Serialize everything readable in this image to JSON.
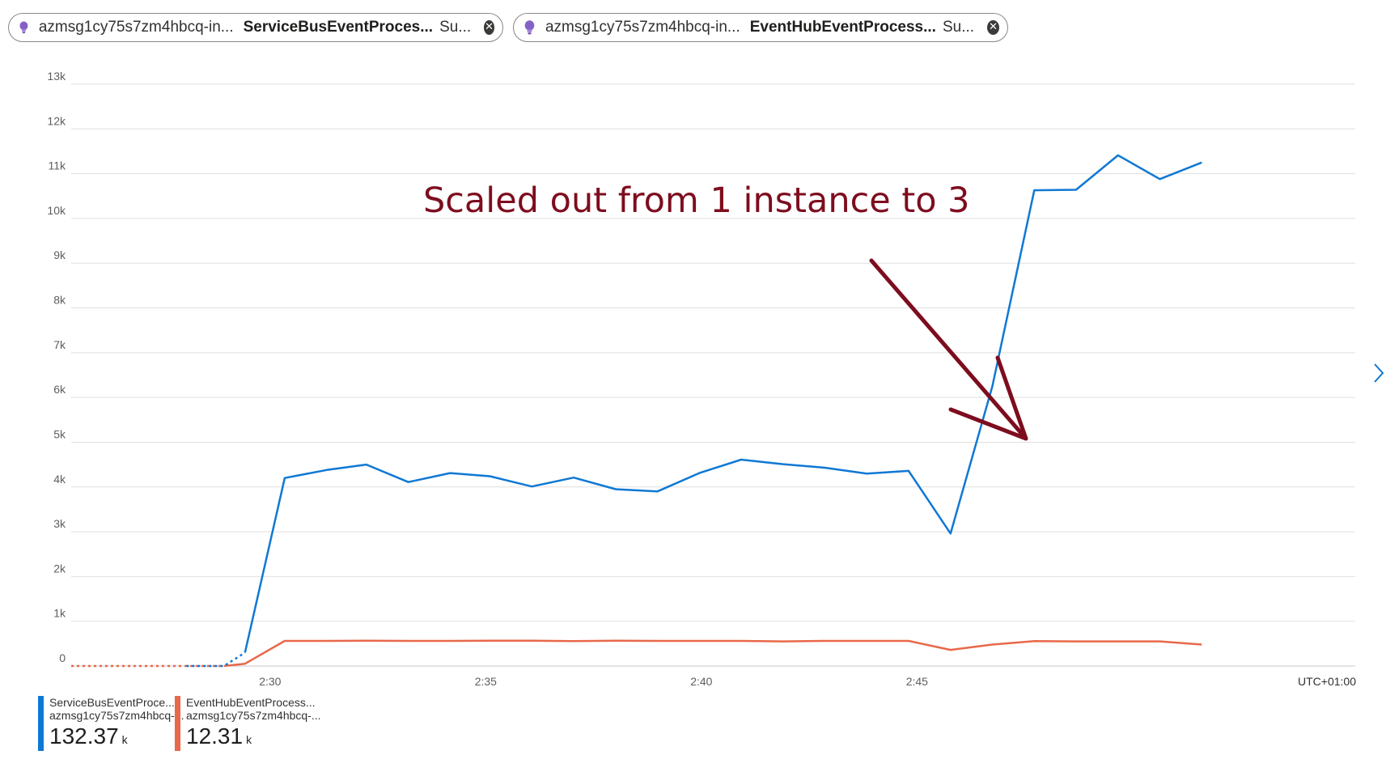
{
  "pills": [
    {
      "resource": "azmsg1cy75s7zm4hbcq-in...",
      "metric": "ServiceBusEventProces...",
      "agg": "Su..."
    },
    {
      "resource": "azmsg1cy75s7zm4hbcq-in...",
      "metric": "EventHubEventProcess...",
      "agg": "Su..."
    }
  ],
  "annotation": {
    "text": "Scaled out from 1 instance to 3",
    "color": "#7d0d1e"
  },
  "legend": [
    {
      "name": "ServiceBusEventProce...",
      "sub": "azmsg1cy75s7zm4hbcq-...",
      "value": "132.37",
      "unit": "k",
      "color": "#0f78d4"
    },
    {
      "name": "EventHubEventProcess...",
      "sub": "azmsg1cy75s7zm4hbcq-...",
      "value": "12.31",
      "unit": "k",
      "color": "#e8684a"
    }
  ],
  "chart_data": {
    "type": "line",
    "y_ticks": [
      "0",
      "1k",
      "2k",
      "3k",
      "4k",
      "5k",
      "6k",
      "7k",
      "8k",
      "9k",
      "10k",
      "11k",
      "12k",
      "13k"
    ],
    "ylim": [
      0,
      13000
    ],
    "x_ticks": [
      "2:30",
      "2:35",
      "2:40",
      "2:45"
    ],
    "timezone_label": "UTC+01:00",
    "grid": true,
    "series": [
      {
        "name": "ServiceBusEventProce...",
        "color": "#0f78d4",
        "dotted_until": 3,
        "points": [
          [
            2.75,
            0
          ],
          [
            3.65,
            0
          ],
          [
            4.15,
            300
          ],
          [
            5.1,
            4200
          ],
          [
            6.1,
            4380
          ],
          [
            7.05,
            4500
          ],
          [
            8.05,
            4110
          ],
          [
            9.05,
            4310
          ],
          [
            10.0,
            4240
          ],
          [
            11.0,
            4010
          ],
          [
            12.0,
            4210
          ],
          [
            13.0,
            3950
          ],
          [
            14.0,
            3900
          ],
          [
            15.0,
            4310
          ],
          [
            16.0,
            4610
          ],
          [
            17.0,
            4510
          ],
          [
            18.0,
            4430
          ],
          [
            19.0,
            4300
          ],
          [
            20.0,
            4360
          ],
          [
            21.0,
            2960
          ],
          [
            22.0,
            6250
          ],
          [
            23.0,
            10630
          ],
          [
            24.0,
            10640
          ],
          [
            25.0,
            11410
          ],
          [
            26.0,
            10880
          ],
          [
            27.0,
            11250
          ]
        ]
      },
      {
        "name": "EventHubEventProcess...",
        "color": "#e8684a",
        "dotted_until": 2,
        "points": [
          [
            0,
            0
          ],
          [
            3.65,
            0
          ],
          [
            4.15,
            50
          ],
          [
            5.1,
            560
          ],
          [
            6.1,
            560
          ],
          [
            7.05,
            565
          ],
          [
            8.05,
            560
          ],
          [
            9.05,
            560
          ],
          [
            10.0,
            565
          ],
          [
            11.0,
            565
          ],
          [
            12.0,
            555
          ],
          [
            13.0,
            565
          ],
          [
            14.0,
            560
          ],
          [
            15.0,
            560
          ],
          [
            16.0,
            560
          ],
          [
            17.0,
            550
          ],
          [
            18.0,
            560
          ],
          [
            19.0,
            560
          ],
          [
            20.0,
            560
          ],
          [
            21.0,
            360
          ],
          [
            22.0,
            480
          ],
          [
            23.0,
            555
          ],
          [
            24.0,
            550
          ],
          [
            25.0,
            550
          ],
          [
            26.0,
            550
          ],
          [
            27.0,
            480
          ]
        ]
      }
    ]
  }
}
